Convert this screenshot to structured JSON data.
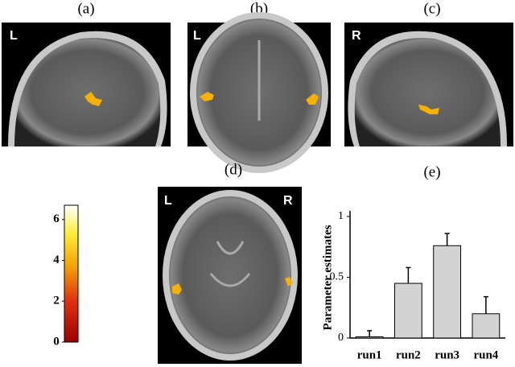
{
  "panels": [
    {
      "label": "(a)",
      "side": "L"
    },
    {
      "label": "(b)",
      "side": "L"
    },
    {
      "label": "(c)",
      "side": "R"
    },
    {
      "label": "(d)",
      "side": "L",
      "side2": "R"
    },
    {
      "label": "(e)"
    }
  ],
  "colorbar": {
    "lim": [
      0,
      6.7
    ],
    "ticks": [
      0,
      2,
      4,
      6
    ]
  },
  "chart_data": {
    "type": "bar",
    "ylabel": "Parameter  estimates",
    "categories": [
      "run1",
      "run2",
      "run3",
      "run4"
    ],
    "values": [
      0.01,
      0.45,
      0.76,
      0.2
    ],
    "errors": [
      0.05,
      0.13,
      0.1,
      0.14
    ],
    "color": "#d3d3d3",
    "ylim": [
      0,
      1.02
    ],
    "yticks": [
      0,
      0.5,
      1
    ]
  }
}
